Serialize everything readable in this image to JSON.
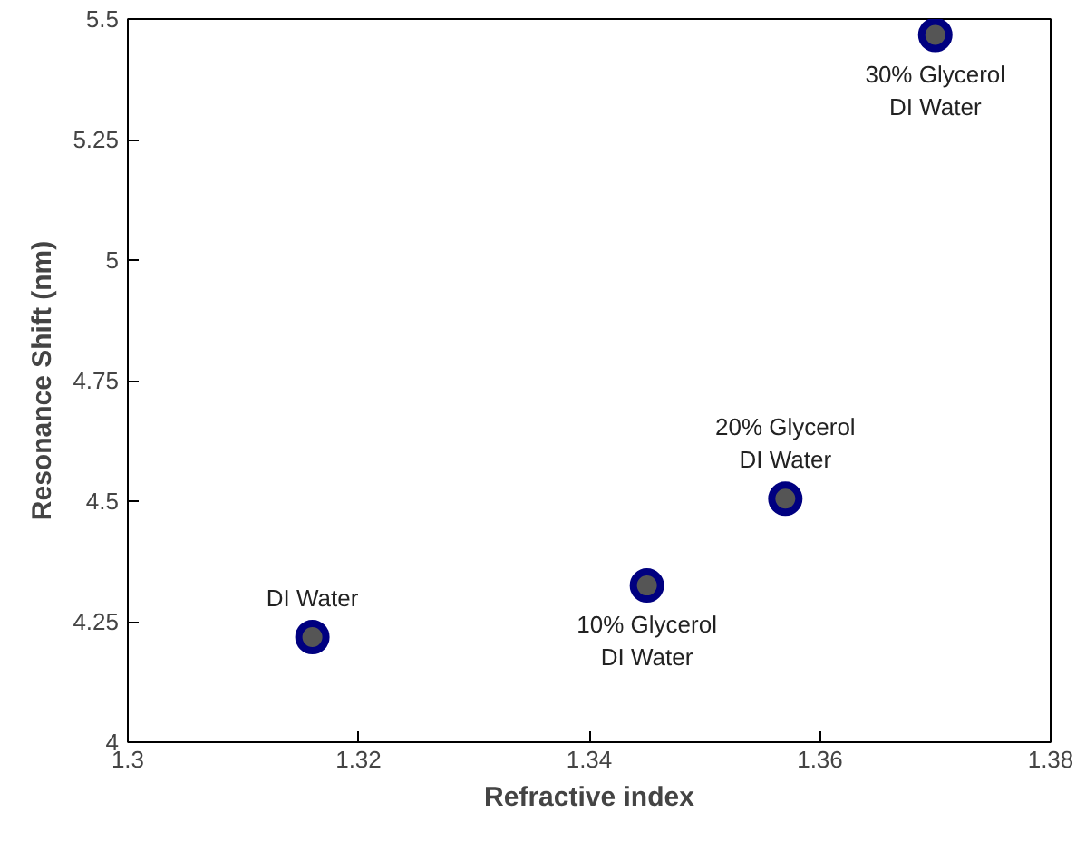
{
  "chart_data": {
    "type": "scatter",
    "xlabel": "Refractive index",
    "ylabel": "Resonance Shift (nm)",
    "x": [
      1.316,
      1.345,
      1.357,
      1.37
    ],
    "series": [
      {
        "color": "#555555",
        "values": [
          4.218,
          4.325,
          4.505,
          5.467
        ]
      }
    ],
    "marker": "circle",
    "xlim": [
      1.3,
      1.38
    ],
    "xticks": [
      1.3,
      1.32,
      1.34,
      1.36,
      1.38
    ],
    "ylim": [
      4,
      5.5
    ],
    "yticks": [
      4,
      4.25,
      4.5,
      4.75,
      5,
      5.25,
      5.5
    ],
    "grid": false,
    "annotations": [
      {
        "text": "DI Water",
        "x": 1.316,
        "y": 4.218
      },
      {
        "text": "10% Glycerol\nDI Water",
        "x": 1.345,
        "y": 4.325
      },
      {
        "text": "20% Glycerol\nDI Water",
        "x": 1.357,
        "y": 4.505
      },
      {
        "text": "30% Glycerol\nDI Water",
        "x": 1.37,
        "y": 5.467
      }
    ]
  }
}
